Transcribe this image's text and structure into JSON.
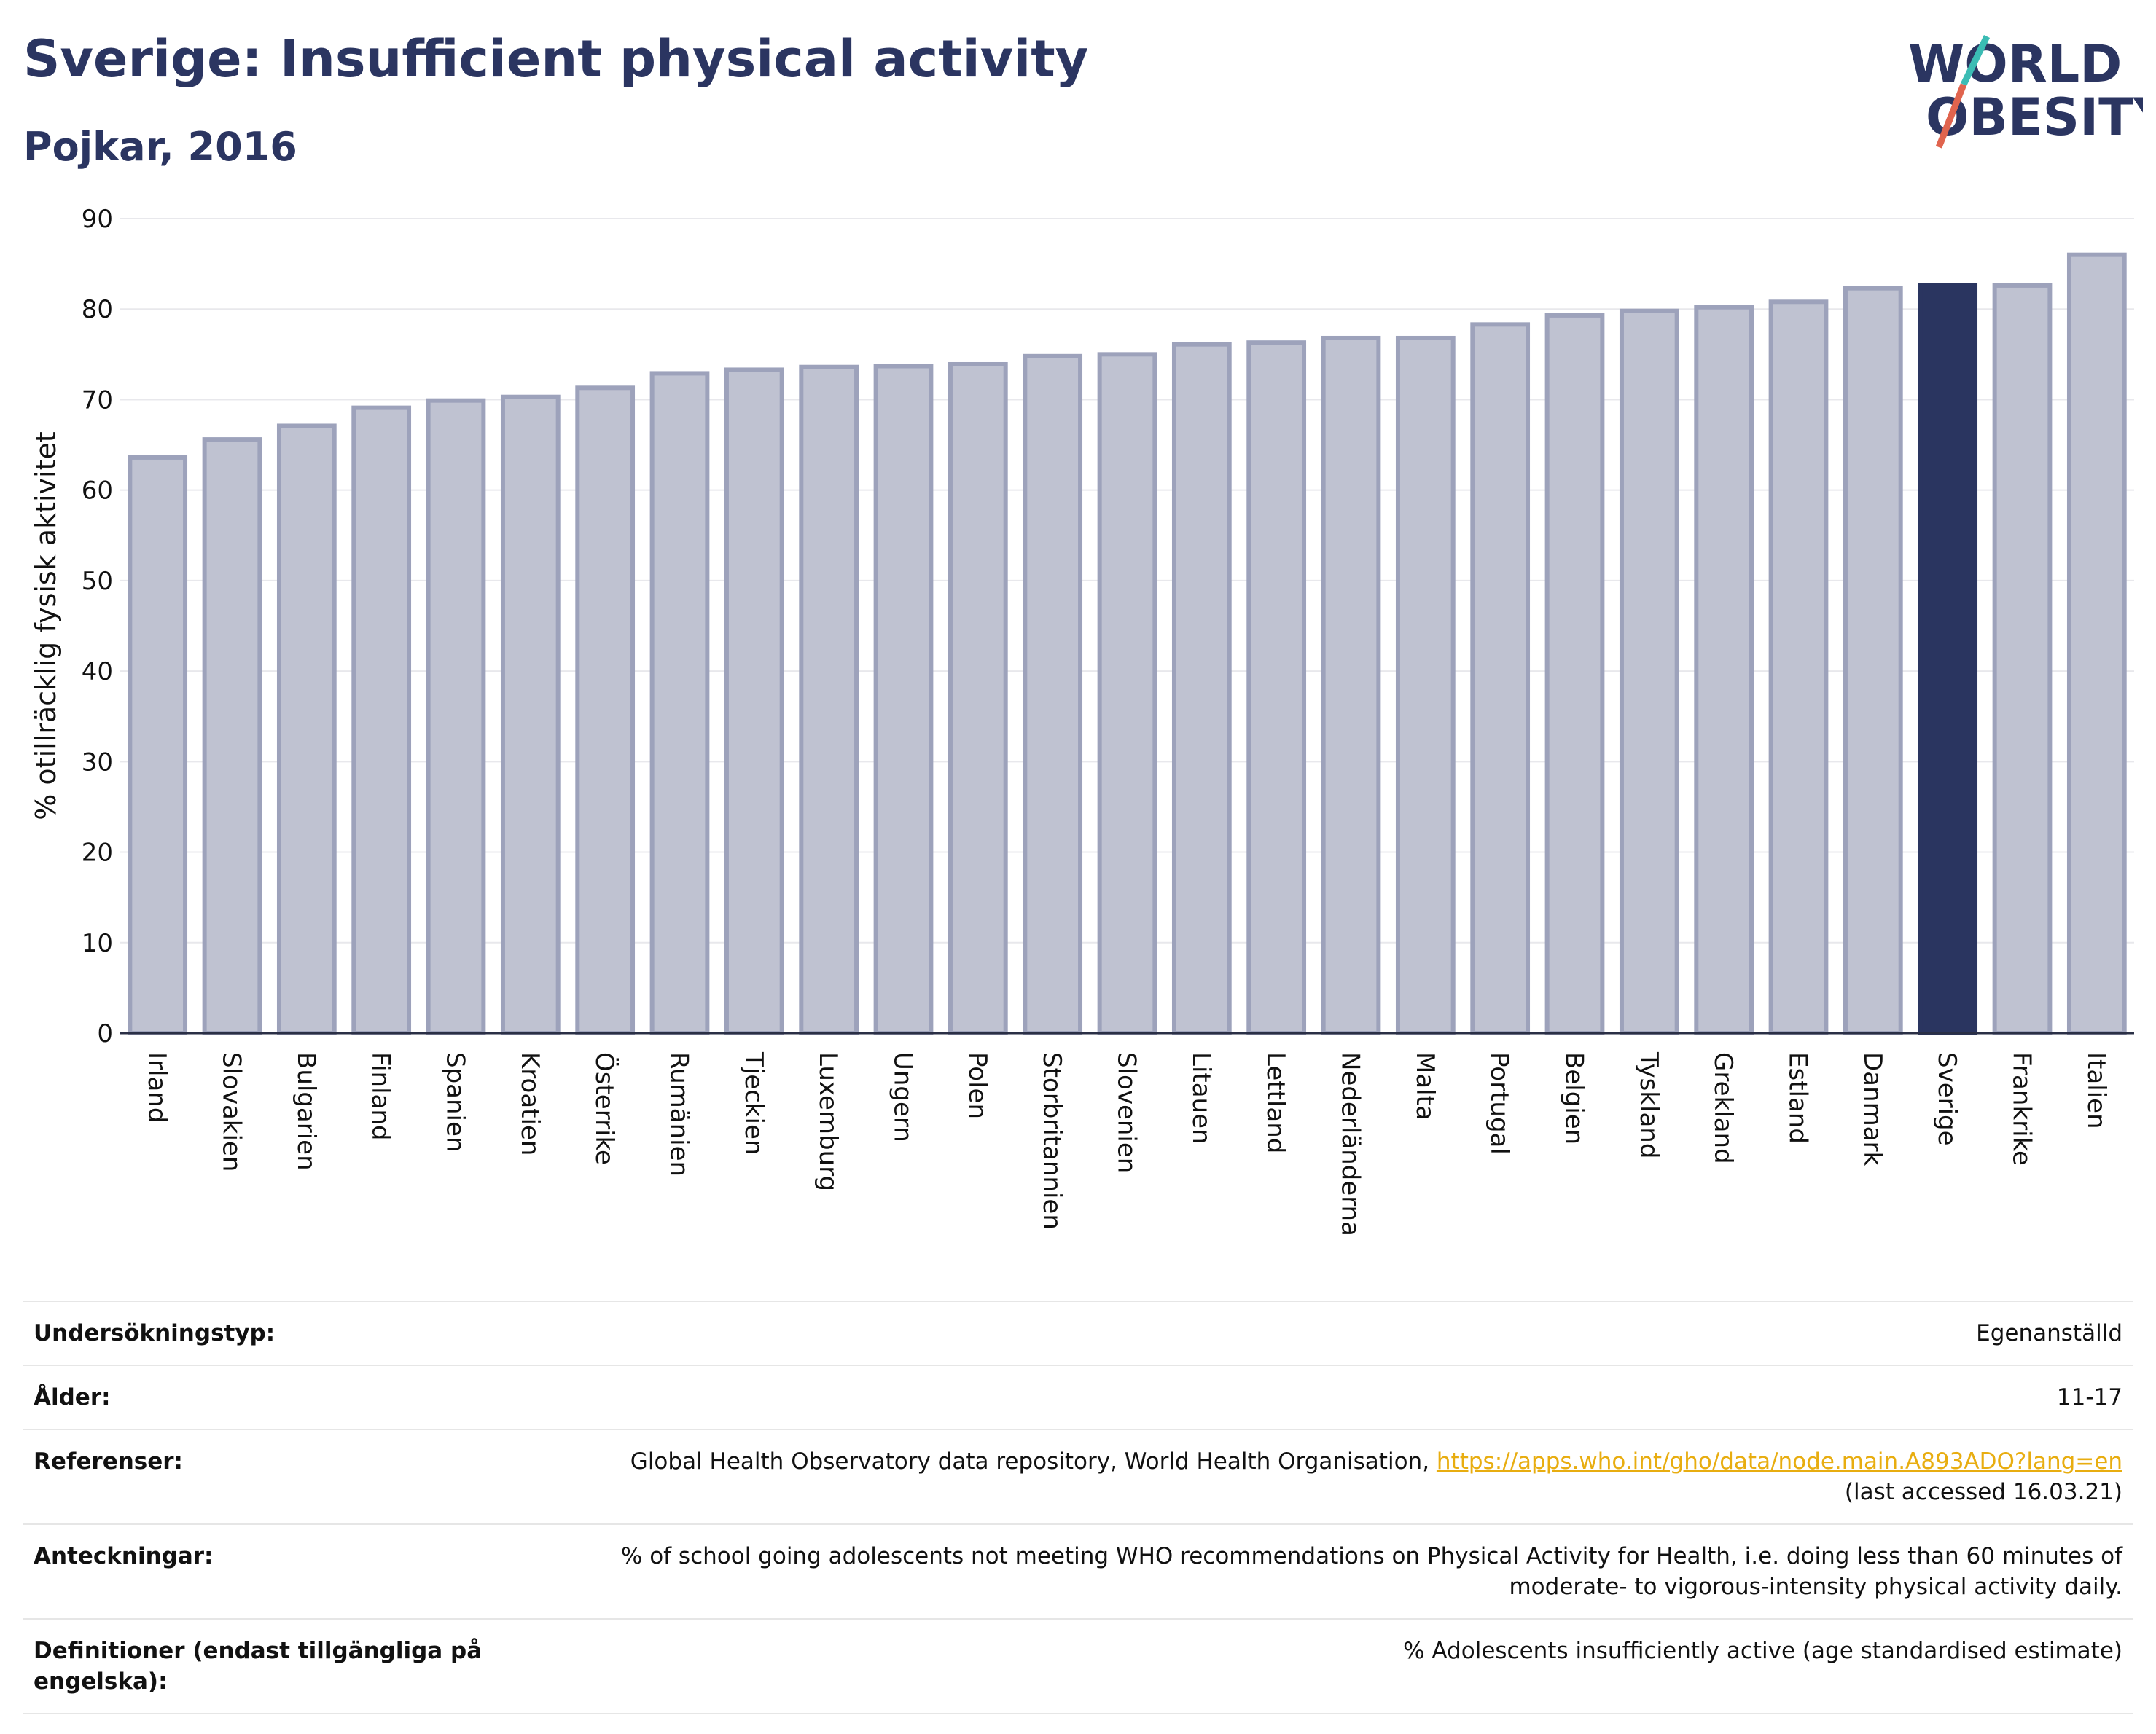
{
  "header": {
    "title": "Sverige: Insufficient physical activity",
    "subtitle": "Pojkar, 2016",
    "logo_line1": "WORLD",
    "logo_line2": "OBESITY"
  },
  "colors": {
    "bar": "#bfc2d1",
    "bar_outline": "#9da2bb",
    "highlight": "#2a3560",
    "text": "#2b3561",
    "link": "#e8ad10"
  },
  "chart_data": {
    "type": "bar",
    "ylabel": "% otillräcklig fysisk aktivitet",
    "ylim": [
      0,
      90
    ],
    "yticks": [
      0,
      10,
      20,
      30,
      40,
      50,
      60,
      70,
      80,
      90
    ],
    "grid": true,
    "highlight": "Sverige",
    "categories": [
      "Irland",
      "Slovakien",
      "Bulgarien",
      "Finland",
      "Spanien",
      "Kroatien",
      "Österrike",
      "Rumänien",
      "Tjeckien",
      "Luxemburg",
      "Ungern",
      "Polen",
      "Storbritannien",
      "Slovenien",
      "Litauen",
      "Lettland",
      "Nederländerna",
      "Malta",
      "Portugal",
      "Belgien",
      "Tyskland",
      "Grekland",
      "Estland",
      "Danmark",
      "Sverige",
      "Frankrike",
      "Italien"
    ],
    "values": [
      63.6,
      65.6,
      67.1,
      69.1,
      69.9,
      70.3,
      71.3,
      72.9,
      73.3,
      73.6,
      73.7,
      73.9,
      74.8,
      75.0,
      76.1,
      76.3,
      76.8,
      76.8,
      78.3,
      79.3,
      79.8,
      80.2,
      80.8,
      82.3,
      82.6,
      82.6,
      86.0
    ]
  },
  "info": {
    "survey_type_label": "Undersökningstyp:",
    "survey_type_value": "Egenanställd",
    "age_label": "Ålder:",
    "age_value": "11-17",
    "references_label": "Referenser:",
    "references_text": "Global Health Observatory data repository, World Health Organisation, ",
    "references_link": "https://apps.who.int/gho/data/node.main.A893ADO?lang=en",
    "references_note": "(last accessed 16.03.21)",
    "notes_label": "Anteckningar:",
    "notes_line1": "% of school going adolescents not meeting WHO recommendations on Physical Activity for Health, i.e. doing less than 60 minutes of",
    "notes_line2": "moderate- to vigorous-intensity physical activity daily.",
    "definitions_label_line1": "Definitioner (endast tillgängliga på",
    "definitions_label_line2": "engelska):",
    "definitions_value": "% Adolescents insufficiently active (age standardised estimate)"
  }
}
